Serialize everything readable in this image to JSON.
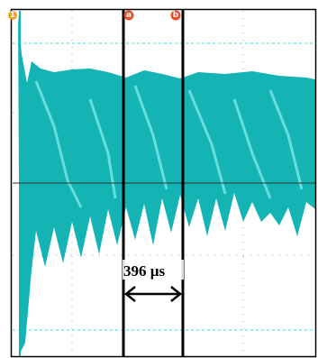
{
  "channel_marker": "1",
  "cursors": [
    {
      "label": "a"
    },
    {
      "label": "b"
    }
  ],
  "measurement": "396 µs"
}
